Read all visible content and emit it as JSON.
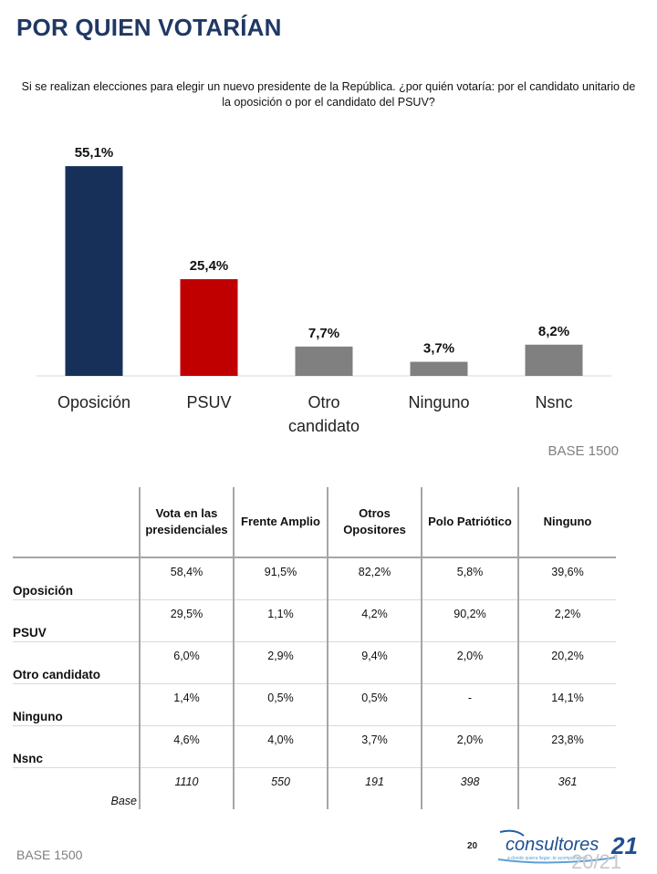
{
  "title": "POR QUIEN VOTARÍAN",
  "question": "Si se realizan elecciones para elegir un nuevo presidente de la República. ¿por quién votaría: por el candidato unitario de la oposición o por el candidato del PSUV?",
  "chart_data": {
    "type": "bar",
    "categories": [
      "Oposición",
      "PSUV",
      "Otro candidato",
      "Ninguno",
      "Nsnc"
    ],
    "values": [
      55.1,
      25.4,
      7.7,
      3.7,
      8.2
    ],
    "labels": [
      "55,1%",
      "25,4%",
      "7,7%",
      "3,7%",
      "8,2%"
    ],
    "colors": [
      "#17305a",
      "#c00000",
      "#808080",
      "#808080",
      "#808080"
    ],
    "ylim": [
      0,
      58
    ],
    "grid": false
  },
  "chart_base": "BASE 1500",
  "table": {
    "columns": [
      "Vota en las presidenciales",
      "Frente Amplio",
      "Otros Opositores",
      "Polo Patriótico",
      "Ninguno"
    ],
    "rows": [
      {
        "label": "Oposición",
        "values": [
          "58,4%",
          "91,5%",
          "82,2%",
          "5,8%",
          "39,6%"
        ]
      },
      {
        "label": "PSUV",
        "values": [
          "29,5%",
          "1,1%",
          "4,2%",
          "90,2%",
          "2,2%"
        ]
      },
      {
        "label": "Otro candidato",
        "values": [
          "6,0%",
          "2,9%",
          "9,4%",
          "2,0%",
          "20,2%"
        ]
      },
      {
        "label": "Ninguno",
        "values": [
          "1,4%",
          "0,5%",
          "0,5%",
          "-",
          "14,1%"
        ]
      },
      {
        "label": "Nsnc",
        "values": [
          "4,6%",
          "4,0%",
          "3,7%",
          "2,0%",
          "23,8%"
        ]
      }
    ],
    "base_label": "Base",
    "base_values": [
      "1110",
      "550",
      "191",
      "398",
      "361"
    ]
  },
  "footer": {
    "base": "BASE 1500",
    "page": "20",
    "page_of": "20/21",
    "logo_text": "consultores",
    "logo_number": "21",
    "logo_tagline": "a donde quiera llegar, te acompañamos"
  }
}
